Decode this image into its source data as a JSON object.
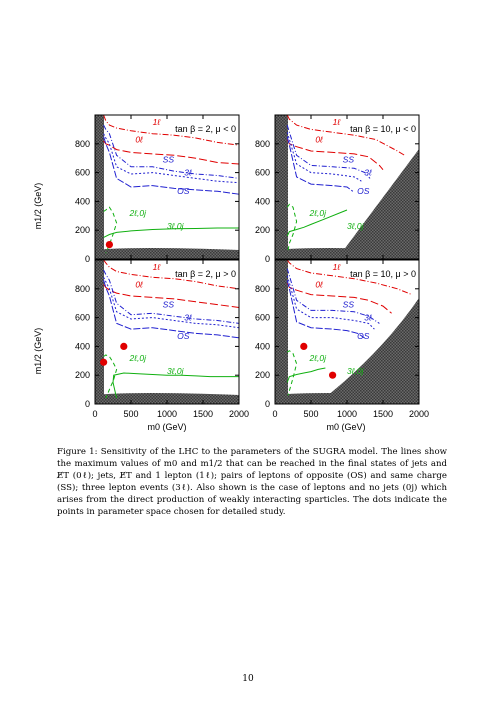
{
  "figure": {
    "ylabel": "m1/2 (GeV)",
    "xlabel": "m0 (GeV)",
    "x_ticks": [
      "0",
      "500",
      "1000",
      "1500",
      "2000"
    ],
    "y_ticks": [
      "0",
      "200",
      "400",
      "600",
      "800"
    ]
  },
  "chart_data": [
    {
      "type": "line",
      "title": "tan β = 2, μ < 0",
      "xlim": [
        0,
        2000
      ],
      "ylim": [
        0,
        1000
      ],
      "points": [
        {
          "x": 200,
          "y": 100,
          "color": "#e00000"
        }
      ],
      "series": [
        {
          "name": "1ℓ",
          "color": "#e00000",
          "dash": "6,2,1,2",
          "x": [
            120,
            150,
            200,
            300,
            500,
            800,
            1100,
            1400,
            1700,
            2000
          ],
          "y": [
            1000,
            960,
            930,
            910,
            890,
            870,
            860,
            840,
            810,
            790
          ]
        },
        {
          "name": "0ℓ",
          "color": "#e00000",
          "dash": "8,3",
          "x": [
            120,
            150,
            200,
            300,
            500,
            800,
            1100,
            1400,
            1700,
            2000
          ],
          "y": [
            820,
            800,
            790,
            760,
            740,
            730,
            720,
            700,
            670,
            660
          ]
        },
        {
          "name": "SS",
          "color": "#2020d0",
          "dash": "5,2,1,2",
          "x": [
            120,
            150,
            200,
            300,
            500,
            800,
            1100,
            1400,
            1700,
            2000
          ],
          "y": [
            930,
            900,
            870,
            720,
            640,
            640,
            610,
            590,
            580,
            560
          ]
        },
        {
          "name": "3ℓ",
          "color": "#2020d0",
          "dash": "2,2",
          "x": [
            120,
            150,
            200,
            300,
            500,
            800,
            1100,
            1400,
            1700,
            2000
          ],
          "y": [
            870,
            840,
            800,
            640,
            590,
            600,
            580,
            560,
            540,
            530
          ]
        },
        {
          "name": "OS",
          "color": "#2020d0",
          "dash": "7,2",
          "x": [
            120,
            150,
            200,
            300,
            500,
            800,
            1100,
            1400,
            1700,
            2000
          ],
          "y": [
            850,
            800,
            740,
            560,
            500,
            510,
            490,
            480,
            470,
            450
          ]
        },
        {
          "name": "2ℓ,0j",
          "color": "#10b010",
          "dash": "4,3",
          "x": [
            120,
            150,
            200,
            250,
            300,
            250,
            200,
            150
          ],
          "y": [
            330,
            340,
            360,
            320,
            250,
            170,
            100,
            40
          ]
        },
        {
          "name": "3ℓ,0j",
          "color": "#10b010",
          "dash": "",
          "x": [
            120,
            200,
            300,
            500,
            800,
            1100,
            1400,
            1700,
            2000
          ],
          "y": [
            150,
            170,
            185,
            195,
            205,
            210,
            212,
            215,
            215
          ]
        }
      ]
    },
    {
      "type": "line",
      "title": "tan β = 10, μ < 0",
      "xlim": [
        0,
        2000
      ],
      "ylim": [
        0,
        1000
      ],
      "points": [],
      "series": [
        {
          "name": "1ℓ",
          "color": "#e00000",
          "dash": "6,2,1,2",
          "x": [
            170,
            200,
            300,
            500,
            800,
            1100,
            1400,
            1700,
            1800
          ],
          "y": [
            1000,
            970,
            930,
            900,
            880,
            860,
            830,
            750,
            720
          ]
        },
        {
          "name": "0ℓ",
          "color": "#e00000",
          "dash": "8,3",
          "x": [
            170,
            200,
            300,
            500,
            800,
            1100,
            1300,
            1450,
            1500
          ],
          "y": [
            830,
            800,
            780,
            750,
            740,
            730,
            710,
            650,
            620
          ]
        },
        {
          "name": "SS",
          "color": "#2020d0",
          "dash": "5,2,1,2",
          "x": [
            170,
            200,
            300,
            500,
            800,
            1100,
            1250,
            1320
          ],
          "y": [
            930,
            880,
            720,
            650,
            640,
            630,
            600,
            560
          ]
        },
        {
          "name": "3ℓ",
          "color": "#2020d0",
          "dash": "2,2",
          "x": [
            170,
            200,
            300,
            500,
            800,
            1100,
            1200
          ],
          "y": [
            880,
            830,
            660,
            600,
            590,
            570,
            540
          ]
        },
        {
          "name": "OS",
          "color": "#2020d0",
          "dash": "7,2",
          "x": [
            170,
            200,
            300,
            500,
            800,
            1000,
            1080
          ],
          "y": [
            850,
            790,
            570,
            520,
            510,
            500,
            470
          ]
        },
        {
          "name": "2ℓ,0j",
          "color": "#10b010",
          "dash": "4,3",
          "x": [
            170,
            200,
            250,
            300,
            250,
            200,
            180
          ],
          "y": [
            360,
            380,
            360,
            260,
            170,
            110,
            60
          ]
        },
        {
          "name": "3ℓ,0j",
          "color": "#10b010",
          "dash": "",
          "x": [
            170,
            200,
            300,
            400,
            500,
            700,
            900,
            1000
          ],
          "y": [
            160,
            190,
            205,
            220,
            240,
            280,
            320,
            340
          ]
        }
      ]
    },
    {
      "type": "line",
      "title": "tan β = 2, μ > 0",
      "xlim": [
        0,
        2000
      ],
      "ylim": [
        0,
        1000
      ],
      "points": [
        {
          "x": 120,
          "y": 290,
          "color": "#e00000"
        },
        {
          "x": 400,
          "y": 400,
          "color": "#e00000"
        }
      ],
      "series": [
        {
          "name": "1ℓ",
          "color": "#e00000",
          "dash": "6,2,1,2",
          "x": [
            120,
            150,
            200,
            300,
            500,
            800,
            1100,
            1400,
            1700,
            2000
          ],
          "y": [
            1000,
            980,
            950,
            920,
            900,
            880,
            870,
            850,
            820,
            800
          ]
        },
        {
          "name": "0ℓ",
          "color": "#e00000",
          "dash": "8,3",
          "x": [
            120,
            150,
            200,
            300,
            500,
            800,
            1100,
            1400,
            1700,
            2000
          ],
          "y": [
            830,
            810,
            790,
            770,
            750,
            740,
            730,
            710,
            690,
            670
          ]
        },
        {
          "name": "SS",
          "color": "#2020d0",
          "dash": "5,2,1,2",
          "x": [
            120,
            150,
            200,
            300,
            500,
            800,
            1100,
            1400,
            1700,
            2000
          ],
          "y": [
            930,
            900,
            860,
            700,
            620,
            630,
            610,
            590,
            580,
            560
          ]
        },
        {
          "name": "3ℓ",
          "color": "#2020d0",
          "dash": "2,2",
          "x": [
            120,
            150,
            200,
            300,
            500,
            800,
            1100,
            1400,
            1700,
            2000
          ],
          "y": [
            880,
            850,
            800,
            640,
            590,
            600,
            580,
            560,
            550,
            530
          ]
        },
        {
          "name": "OS",
          "color": "#2020d0",
          "dash": "7,2",
          "x": [
            120,
            150,
            200,
            300,
            500,
            800,
            1100,
            1400,
            1700,
            2000
          ],
          "y": [
            860,
            810,
            750,
            560,
            520,
            530,
            510,
            490,
            480,
            460
          ]
        },
        {
          "name": "2ℓ,0j",
          "color": "#10b010",
          "dash": "4,3",
          "x": [
            120,
            150,
            200,
            250,
            300,
            260,
            200,
            150
          ],
          "y": [
            330,
            340,
            330,
            290,
            240,
            170,
            100,
            40
          ]
        },
        {
          "name": "3ℓ,0j",
          "color": "#10b010",
          "dash": "",
          "x": [
            300,
            250,
            260,
            400,
            600,
            800,
            1000,
            1200,
            1400,
            1600,
            1800,
            2000
          ],
          "y": [
            40,
            150,
            200,
            215,
            210,
            205,
            200,
            200,
            195,
            190,
            190,
            190
          ]
        }
      ]
    },
    {
      "type": "line",
      "title": "tan β = 10, μ > 0",
      "xlim": [
        0,
        2000
      ],
      "ylim": [
        0,
        1000
      ],
      "points": [
        {
          "x": 400,
          "y": 400,
          "color": "#e00000"
        },
        {
          "x": 800,
          "y": 200,
          "color": "#e00000"
        }
      ],
      "series": [
        {
          "name": "1ℓ",
          "color": "#e00000",
          "dash": "6,2,1,2",
          "x": [
            170,
            200,
            300,
            500,
            800,
            1100,
            1400,
            1700,
            1900
          ],
          "y": [
            1000,
            980,
            940,
            910,
            890,
            870,
            840,
            800,
            760
          ]
        },
        {
          "name": "0ℓ",
          "color": "#e00000",
          "dash": "8,3",
          "x": [
            170,
            200,
            300,
            500,
            800,
            1100,
            1300,
            1500,
            1620
          ],
          "y": [
            840,
            810,
            790,
            760,
            750,
            740,
            720,
            680,
            630
          ]
        },
        {
          "name": "SS",
          "color": "#2020d0",
          "dash": "5,2,1,2",
          "x": [
            170,
            200,
            300,
            500,
            800,
            1100,
            1300,
            1450
          ],
          "y": [
            940,
            890,
            720,
            650,
            650,
            640,
            610,
            560
          ]
        },
        {
          "name": "3ℓ",
          "color": "#2020d0",
          "dash": "2,2",
          "x": [
            170,
            200,
            300,
            500,
            800,
            1100,
            1300,
            1380
          ],
          "y": [
            890,
            840,
            660,
            600,
            600,
            580,
            560,
            520
          ]
        },
        {
          "name": "OS",
          "color": "#2020d0",
          "dash": "7,2",
          "x": [
            170,
            200,
            300,
            500,
            800,
            1000,
            1150,
            1240
          ],
          "y": [
            860,
            800,
            570,
            530,
            520,
            510,
            490,
            460
          ]
        },
        {
          "name": "2ℓ,0j",
          "color": "#10b010",
          "dash": "4,3",
          "x": [
            170,
            200,
            250,
            300,
            250,
            210,
            180
          ],
          "y": [
            360,
            370,
            350,
            280,
            180,
            110,
            60
          ]
        },
        {
          "name": "3ℓ,0j",
          "color": "#10b010",
          "dash": "",
          "x": [
            170,
            200,
            300,
            400,
            500,
            600,
            700
          ],
          "y": [
            150,
            190,
            205,
            215,
            225,
            240,
            250
          ]
        }
      ]
    }
  ],
  "caption": {
    "label": "Figure 1:",
    "text": "Sensitivity of the LHC to the parameters of the SUGRA model. The lines show the maximum values of m0 and m1/2 that can be reached in the final states of jets and E̸T (0ℓ); jets, E̸T and 1 lepton (1ℓ); pairs of leptons of opposite (OS) and same charge (SS); three lepton events (3ℓ). Also shown is the case of leptons and no jets (0j) which arises from the direct production of weakly interacting sparticles. The dots indicate the points in parameter space chosen for detailed study."
  },
  "page_number": "10"
}
